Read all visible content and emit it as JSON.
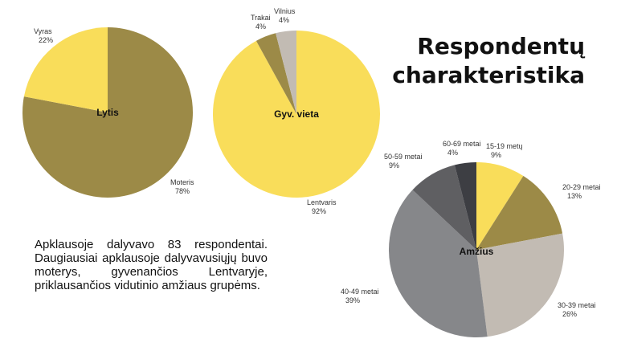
{
  "heading": {
    "line1": "Respondentų",
    "line2": "charakteristika"
  },
  "summary": "Apklausoje dalyvavo 83 respondentai. Daugiausiai apklausoje dalyvavusiųjų buvo moterys, gyvenančios Lentvaryje, priklausančios vidutinio amžiaus grupėms.",
  "chart_data": [
    {
      "type": "pie",
      "title": "Lytis",
      "slices": [
        {
          "label": "Moteris",
          "value": 78,
          "color": "#9c8a47"
        },
        {
          "label": "Vyras",
          "value": 22,
          "color": "#f9dd5a"
        }
      ]
    },
    {
      "type": "pie",
      "title": "Gyv. vieta",
      "slices": [
        {
          "label": "Lentvaris",
          "value": 92,
          "color": "#f9dd5a"
        },
        {
          "label": "Trakai",
          "value": 4,
          "color": "#9c8a47"
        },
        {
          "label": "Vilnius",
          "value": 4,
          "color": "#c2bbb3"
        }
      ]
    },
    {
      "type": "pie",
      "title": "Amžius",
      "slices": [
        {
          "label": "15-19 metų",
          "value": 9,
          "color": "#f9dd5a"
        },
        {
          "label": "20-29 metai",
          "value": 13,
          "color": "#9c8a47"
        },
        {
          "label": "30-39 metai",
          "value": 26,
          "color": "#c2bbb3"
        },
        {
          "label": "40-49 metai",
          "value": 39,
          "color": "#86878a"
        },
        {
          "label": "50-59 metai",
          "value": 9,
          "color": "#5f5f62"
        },
        {
          "label": "60-69 metai",
          "value": 4,
          "color": "#3d3e43"
        }
      ]
    }
  ]
}
